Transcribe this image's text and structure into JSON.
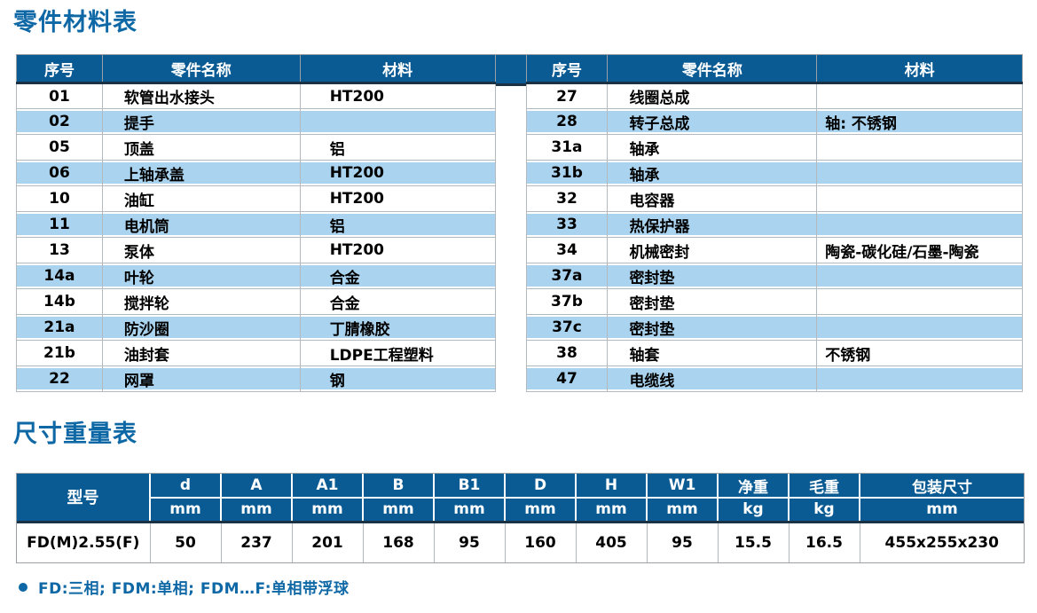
{
  "sections": {
    "parts_title": "零件材料表",
    "dimensions_title": "尺寸重量表"
  },
  "colors": {
    "header_blue": "#0a5b93",
    "row_blue": "#a9d3ee",
    "title_blue": "#0e68a6",
    "dark_line": "#1b3246",
    "border_gray": "#9aa0a5"
  },
  "parts_table": {
    "headers": [
      "序号",
      "零件名称",
      "材料"
    ],
    "left_rows": [
      {
        "no": "01",
        "name": "软管出水接头",
        "material": "HT200"
      },
      {
        "no": "02",
        "name": "提手",
        "material": ""
      },
      {
        "no": "05",
        "name": "顶盖",
        "material": "铝"
      },
      {
        "no": "06",
        "name": "上轴承盖",
        "material": "HT200"
      },
      {
        "no": "10",
        "name": "油缸",
        "material": "HT200"
      },
      {
        "no": "11",
        "name": "电机筒",
        "material": "铝"
      },
      {
        "no": "13",
        "name": "泵体",
        "material": "HT200"
      },
      {
        "no": "14a",
        "name": "叶轮",
        "material": "合金"
      },
      {
        "no": "14b",
        "name": "搅拌轮",
        "material": "合金"
      },
      {
        "no": "21a",
        "name": "防沙圈",
        "material": "丁腈橡胶"
      },
      {
        "no": "21b",
        "name": "油封套",
        "material": "LDPE工程塑料"
      },
      {
        "no": "22",
        "name": "网罩",
        "material": "钢"
      }
    ],
    "right_rows": [
      {
        "no": "27",
        "name": "线圈总成",
        "material": ""
      },
      {
        "no": "28",
        "name": "转子总成",
        "material": "轴: 不锈钢"
      },
      {
        "no": "31a",
        "name": "轴承",
        "material": ""
      },
      {
        "no": "31b",
        "name": "轴承",
        "material": ""
      },
      {
        "no": "32",
        "name": "电容器",
        "material": ""
      },
      {
        "no": "33",
        "name": "热保护器",
        "material": ""
      },
      {
        "no": "34",
        "name": "机械密封",
        "material": "陶瓷-碳化硅/石墨-陶瓷"
      },
      {
        "no": "37a",
        "name": "密封垫",
        "material": ""
      },
      {
        "no": "37b",
        "name": "密封垫",
        "material": ""
      },
      {
        "no": "37c",
        "name": "密封垫",
        "material": ""
      },
      {
        "no": "38",
        "name": "轴套",
        "material": "不锈钢"
      },
      {
        "no": "47",
        "name": "电缆线",
        "material": ""
      }
    ]
  },
  "dimension_table": {
    "model_header": "型号",
    "columns": [
      {
        "label": "d",
        "unit": "mm"
      },
      {
        "label": "A",
        "unit": "mm"
      },
      {
        "label": "A1",
        "unit": "mm"
      },
      {
        "label": "B",
        "unit": "mm"
      },
      {
        "label": "B1",
        "unit": "mm"
      },
      {
        "label": "D",
        "unit": "mm"
      },
      {
        "label": "H",
        "unit": "mm"
      },
      {
        "label": "W1",
        "unit": "mm"
      },
      {
        "label": "净重",
        "unit": "kg"
      },
      {
        "label": "毛重",
        "unit": "kg"
      },
      {
        "label": "包装尺寸",
        "unit": "mm"
      }
    ],
    "rows": [
      {
        "model": "FD(M)2.55(F)",
        "values": [
          "50",
          "237",
          "201",
          "168",
          "95",
          "160",
          "405",
          "95",
          "15.5",
          "16.5",
          "455x255x230"
        ]
      }
    ]
  },
  "footnote": {
    "text": "FD:三相; FDM:单相; FDM…F:单相带浮球"
  }
}
